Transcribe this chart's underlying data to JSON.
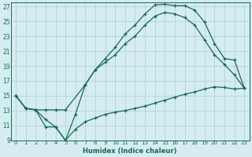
{
  "xlabel": "Humidex (Indice chaleur)",
  "xlim_min": -0.5,
  "xlim_max": 23.5,
  "ylim_min": 9,
  "ylim_max": 27.5,
  "xticks": [
    0,
    1,
    2,
    3,
    4,
    5,
    6,
    7,
    8,
    9,
    10,
    11,
    12,
    13,
    14,
    15,
    16,
    17,
    18,
    19,
    20,
    21,
    22,
    23
  ],
  "yticks": [
    9,
    11,
    13,
    15,
    17,
    19,
    21,
    23,
    25,
    27
  ],
  "bg_color": "#d5edf0",
  "grid_color": "#aacdd4",
  "line_color": "#1a6655",
  "curve1_x": [
    0,
    1,
    2,
    3,
    4,
    5,
    6,
    7,
    8,
    9,
    10,
    11,
    12,
    13,
    14,
    15,
    16,
    17,
    18,
    19,
    20,
    21,
    22,
    23
  ],
  "curve1_y": [
    15,
    13.3,
    13.1,
    10.8,
    10.8,
    9.0,
    12.5,
    16.5,
    18.5,
    20.0,
    21.5,
    23.3,
    24.5,
    26.0,
    27.2,
    27.3,
    27.1,
    27.1,
    26.5,
    24.9,
    22.0,
    20.0,
    19.8,
    16.0
  ],
  "curve2_x": [
    0,
    1,
    2,
    3,
    4,
    5,
    7,
    8,
    9,
    10,
    11,
    12,
    13,
    14,
    15,
    16,
    17,
    18,
    19,
    20,
    21,
    22,
    23
  ],
  "curve2_y": [
    15,
    13.3,
    13.1,
    13.1,
    13.1,
    13.1,
    16.5,
    18.5,
    19.5,
    20.5,
    22.0,
    23.0,
    24.5,
    25.7,
    26.2,
    26.0,
    25.5,
    24.5,
    22.5,
    20.5,
    19.2,
    17.8,
    16.0
  ],
  "curve3_x": [
    0,
    1,
    2,
    3,
    4,
    5,
    6,
    7,
    8,
    9,
    10,
    11,
    12,
    13,
    14,
    15,
    16,
    17,
    18,
    19,
    20,
    21,
    22,
    23
  ],
  "curve3_y": [
    15,
    13.3,
    13.1,
    11.8,
    10.8,
    9.0,
    10.5,
    11.5,
    12.0,
    12.5,
    12.8,
    13.0,
    13.3,
    13.6,
    14.0,
    14.4,
    14.8,
    15.2,
    15.5,
    15.9,
    16.2,
    16.1,
    15.9,
    16.0
  ]
}
